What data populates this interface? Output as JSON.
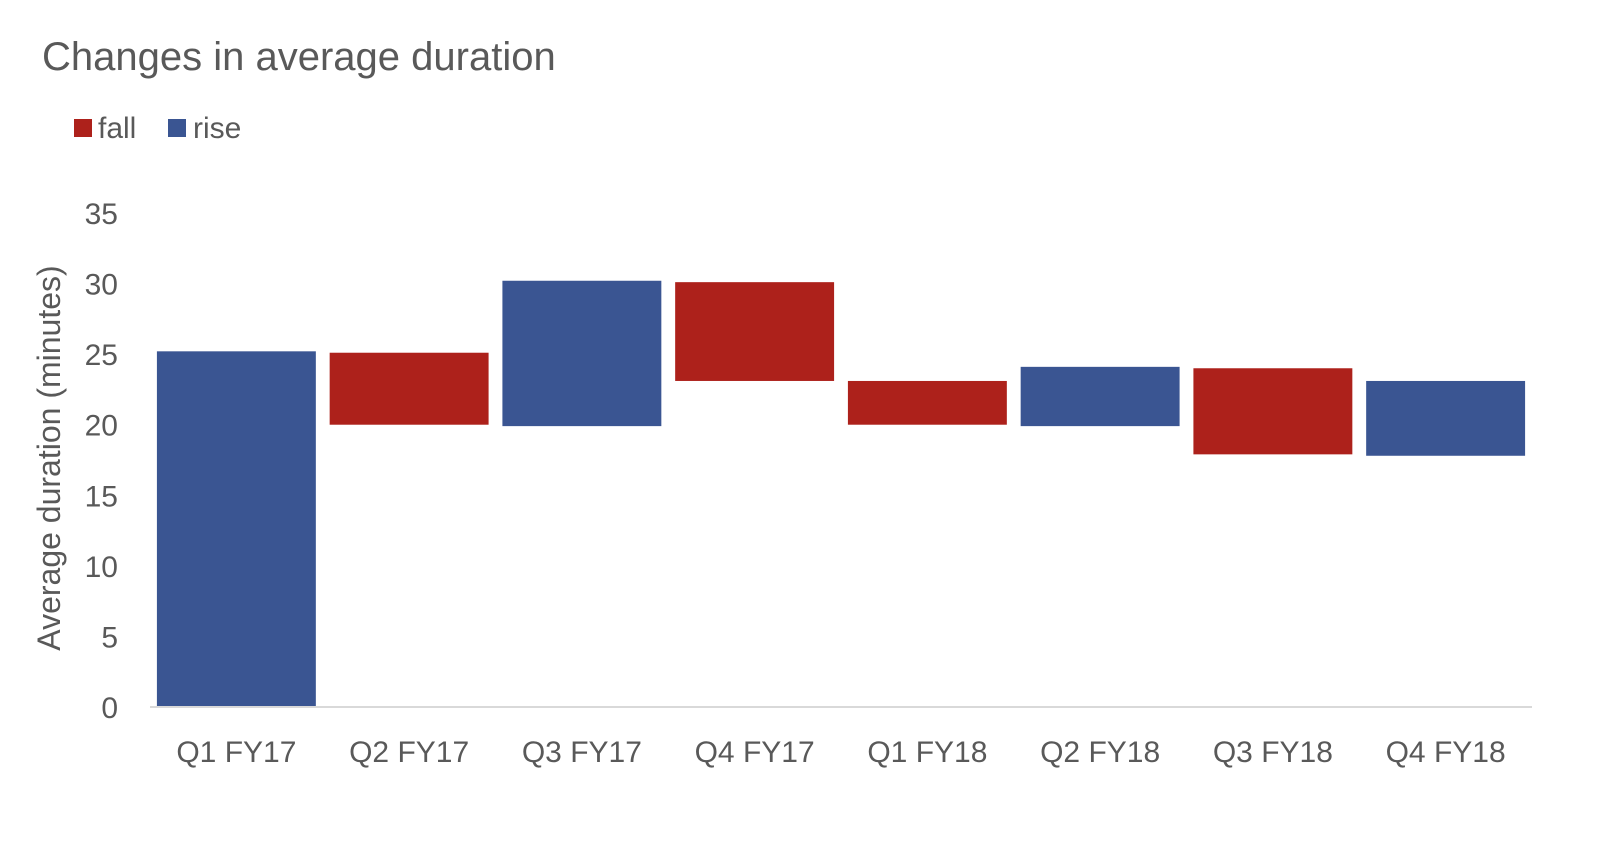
{
  "chart_data": {
    "type": "waterfall",
    "title": "Changes in average duration",
    "ylabel": "Average duration (minutes)",
    "xlabel": "",
    "ylim": [
      0,
      35
    ],
    "yticks": [
      0,
      5,
      10,
      15,
      20,
      25,
      30,
      35
    ],
    "grid": false,
    "legend_position": "top-left",
    "legend": [
      {
        "name": "fall",
        "color": "#ad211b"
      },
      {
        "name": "rise",
        "color": "#3a5592"
      }
    ],
    "categories": [
      "Q1 FY17",
      "Q2 FY17",
      "Q3 FY17",
      "Q4 FY17",
      "Q1 FY18",
      "Q2 FY18",
      "Q3 FY18",
      "Q4 FY18"
    ],
    "bars": [
      {
        "category": "Q1 FY17",
        "direction": "rise",
        "low": 0,
        "high": 25.2
      },
      {
        "category": "Q2 FY17",
        "direction": "fall",
        "low": 20.0,
        "high": 25.1
      },
      {
        "category": "Q3 FY17",
        "direction": "rise",
        "low": 19.9,
        "high": 30.2
      },
      {
        "category": "Q4 FY17",
        "direction": "fall",
        "low": 23.1,
        "high": 30.1
      },
      {
        "category": "Q1 FY18",
        "direction": "fall",
        "low": 20.0,
        "high": 23.1
      },
      {
        "category": "Q2 FY18",
        "direction": "rise",
        "low": 19.9,
        "high": 24.1
      },
      {
        "category": "Q3 FY18",
        "direction": "fall",
        "low": 17.9,
        "high": 24.0
      },
      {
        "category": "Q4 FY18",
        "direction": "rise",
        "low": 17.8,
        "high": 23.1
      }
    ],
    "colors": {
      "rise": "#3a5592",
      "fall": "#ad211b",
      "text": "#595959",
      "axis": "#d9d9d9"
    }
  }
}
